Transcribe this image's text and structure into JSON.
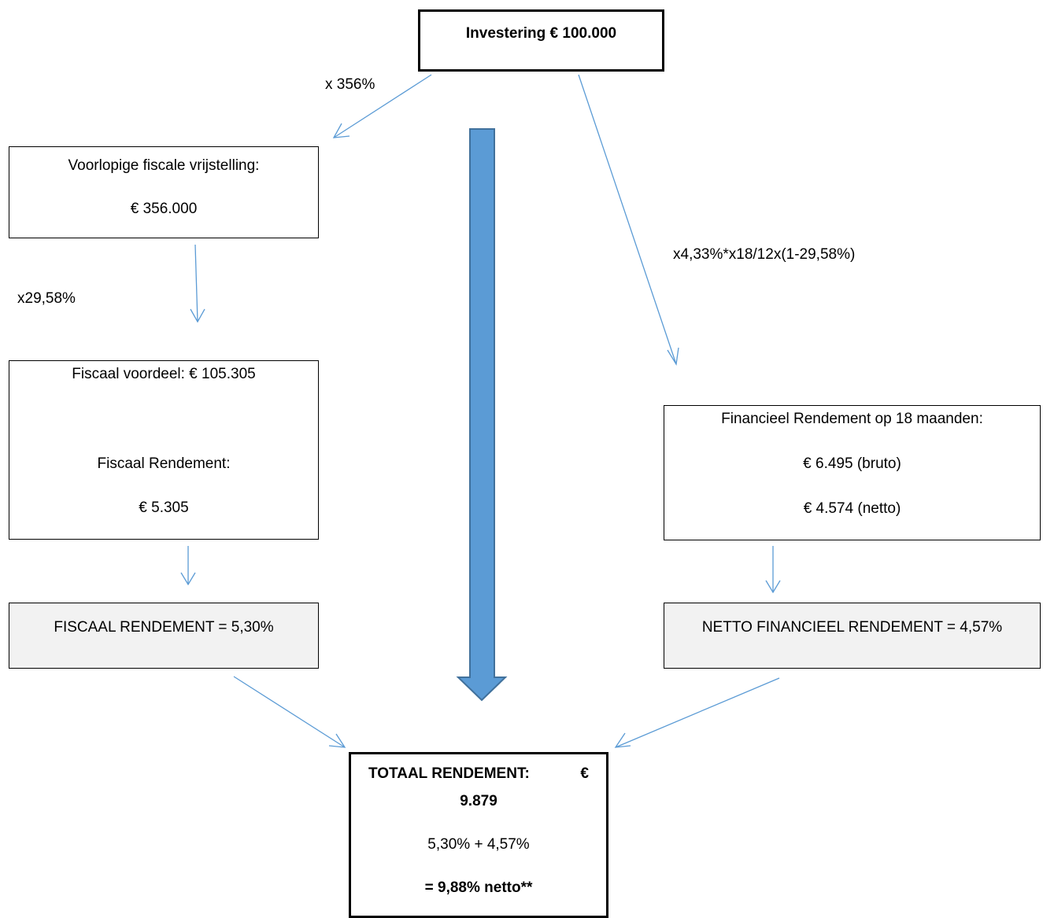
{
  "investment": {
    "label": "Investering € 100.000"
  },
  "exemption": {
    "line1": "Voorlopige fiscale vrijstelling:",
    "line2": "€ 356.000"
  },
  "fiscal": {
    "line1": "Fiscaal voordeel: € 105.305",
    "line2": "Fiscaal Rendement:",
    "line3": "€ 5.305"
  },
  "fiscal_return": {
    "label": "FISCAAL RENDEMENT = 5,30%"
  },
  "financial": {
    "line1": "Financieel Rendement op 18 maanden:",
    "line2": "€ 6.495 (bruto)",
    "line3": "€ 4.574 (netto)"
  },
  "financial_return": {
    "label": "NETTO FINANCIEEL RENDEMENT = 4,57%"
  },
  "total": {
    "title": "TOTAAL RENDEMENT:",
    "euro": "€",
    "amount": "9.879",
    "sum": "5,30% + 4,57%",
    "result": "= 9,88% netto**"
  },
  "labels": {
    "times_356": "x 356%",
    "times_2958": "x29,58%",
    "financial_formula": "x4,33%*x18/12x(1-29,58%)"
  },
  "colors": {
    "connector": "#5b9bd5",
    "big_arrow_fill": "#5b9bd5",
    "big_arrow_stroke": "#41719c",
    "box_border": "#000000",
    "shaded_fill": "#f2f2f2"
  }
}
